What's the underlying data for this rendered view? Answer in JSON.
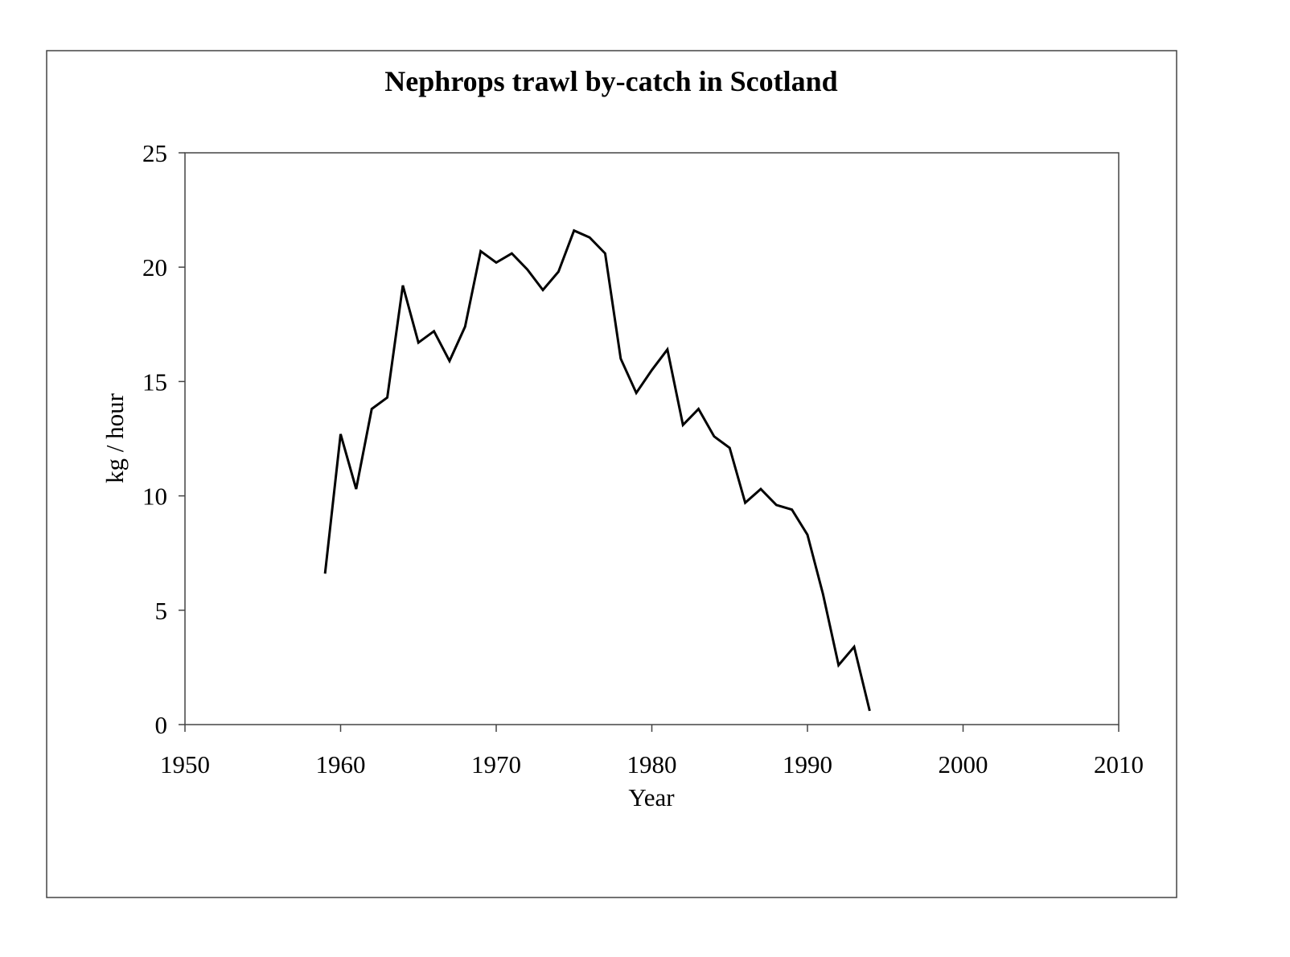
{
  "chart_data": {
    "type": "line",
    "title": "Nephrops trawl by-catch in Scotland",
    "x_label": "Year",
    "y_label": "kg / hour",
    "x": [
      1959,
      1960,
      1961,
      1962,
      1963,
      1964,
      1965,
      1966,
      1967,
      1968,
      1969,
      1970,
      1971,
      1972,
      1973,
      1974,
      1975,
      1976,
      1977,
      1978,
      1979,
      1980,
      1981,
      1982,
      1983,
      1984,
      1985,
      1986,
      1987,
      1988,
      1989,
      1990,
      1991,
      1992,
      1993,
      1994
    ],
    "series": [
      {
        "color": "#000000",
        "values": [
          6.6,
          12.7,
          10.3,
          13.8,
          14.3,
          19.2,
          16.7,
          17.2,
          15.9,
          17.4,
          20.7,
          20.2,
          20.6,
          19.9,
          19.0,
          19.8,
          21.6,
          21.3,
          20.6,
          16.0,
          14.5,
          15.5,
          16.4,
          13.1,
          13.8,
          12.6,
          12.1,
          9.7,
          10.3,
          9.6,
          9.4,
          8.3,
          5.7,
          2.6,
          3.4,
          0.6
        ]
      }
    ],
    "xlim": [
      1950,
      2010
    ],
    "xticks": [
      1950,
      1960,
      1970,
      1980,
      1990,
      2000,
      2010
    ],
    "ylim": [
      0,
      25
    ],
    "yticks": [
      0,
      5,
      10,
      15,
      20,
      25
    ],
    "grid": false
  }
}
